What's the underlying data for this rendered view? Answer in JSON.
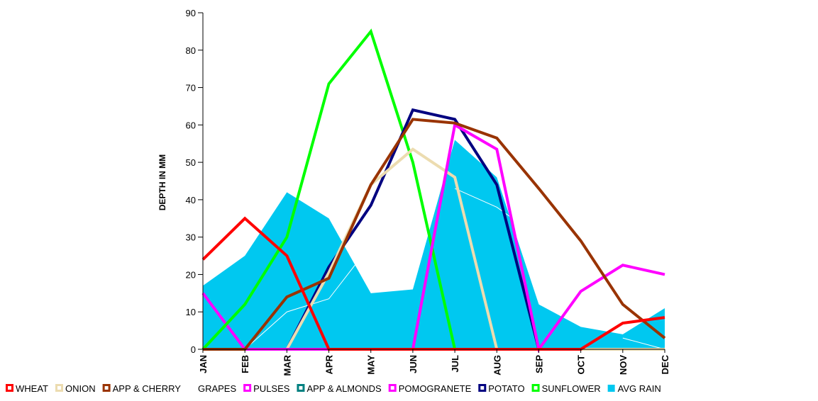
{
  "chart_data": {
    "type": "line",
    "ylabel": "DEPTH IN MM",
    "ylim": [
      0,
      90
    ],
    "yticks": [
      0,
      10,
      20,
      30,
      40,
      50,
      60,
      70,
      80,
      90
    ],
    "categories": [
      "JAN",
      "FEB",
      "MAR",
      "APR",
      "MAY",
      "JUN",
      "JUL",
      "AUG",
      "SEP",
      "OCT",
      "NOV",
      "DEC"
    ],
    "grid": false,
    "legend_position": "bottom",
    "area_series": {
      "name": "AVG RAIN",
      "color": "#00c8f0",
      "values": [
        17,
        25,
        42,
        35,
        15,
        16,
        56,
        46,
        12,
        6,
        4,
        11
      ]
    },
    "series": [
      {
        "name": "PULSES",
        "color": "#ff00ff",
        "values": [
          15,
          0,
          0,
          0,
          0,
          0,
          0,
          0,
          0,
          0,
          0,
          0
        ]
      },
      {
        "name": "GRAPES",
        "color": "#ffffff",
        "values": [
          0,
          0,
          10,
          13.5,
          28,
          null,
          43,
          38,
          30,
          null,
          3,
          0
        ]
      },
      {
        "name": "SUNFLOWER",
        "color": "#00ff00",
        "values": [
          0,
          12,
          30,
          71,
          85,
          50,
          0,
          0,
          0,
          0,
          0,
          0
        ]
      },
      {
        "name": "POTATO",
        "color": "#000080",
        "values": [
          0,
          0,
          0,
          22,
          38.5,
          64,
          61.5,
          44,
          0,
          0,
          0,
          0
        ]
      },
      {
        "name": "ONION",
        "color": "#ecdcb0",
        "values": [
          0,
          0,
          0,
          20.5,
          44,
          53.5,
          46,
          0,
          0,
          0,
          0,
          0
        ]
      },
      {
        "name": "POMOGRANETE",
        "color": "#ff00ff",
        "values": [
          0,
          0,
          0,
          0,
          0,
          0,
          60,
          53.5,
          0,
          15.5,
          22.5,
          20
        ]
      },
      {
        "name": "APP & CHERRY",
        "color": "#993300",
        "values": [
          0,
          0,
          14,
          19,
          44,
          61.5,
          60.5,
          56.5,
          43,
          29,
          12,
          3
        ]
      },
      {
        "name": "WHEAT",
        "color": "#ff0000",
        "values": [
          24,
          35,
          25,
          0,
          0,
          0,
          0,
          0,
          0,
          0,
          7,
          8.5
        ]
      }
    ],
    "legend": [
      {
        "label": "WHEAT",
        "color": "#ff0000",
        "style": "line"
      },
      {
        "label": "ONION",
        "color": "#ecdcb0",
        "style": "line"
      },
      {
        "label": "APP & CHERRY",
        "color": "#993300",
        "style": "line"
      },
      {
        "label": "GRAPES",
        "color": "#ffffff",
        "style": "line"
      },
      {
        "label": "PULSES",
        "color": "#ff00ff",
        "style": "line"
      },
      {
        "label": "APP & ALMONDS",
        "color": "#008080",
        "style": "line"
      },
      {
        "label": "POMOGRANETE",
        "color": "#ff00ff",
        "style": "line"
      },
      {
        "label": "POTATO",
        "color": "#000080",
        "style": "line"
      },
      {
        "label": "SUNFLOWER",
        "color": "#00ff00",
        "style": "line"
      },
      {
        "label": "AVG RAIN",
        "color": "#00c8f0",
        "style": "area"
      }
    ]
  }
}
